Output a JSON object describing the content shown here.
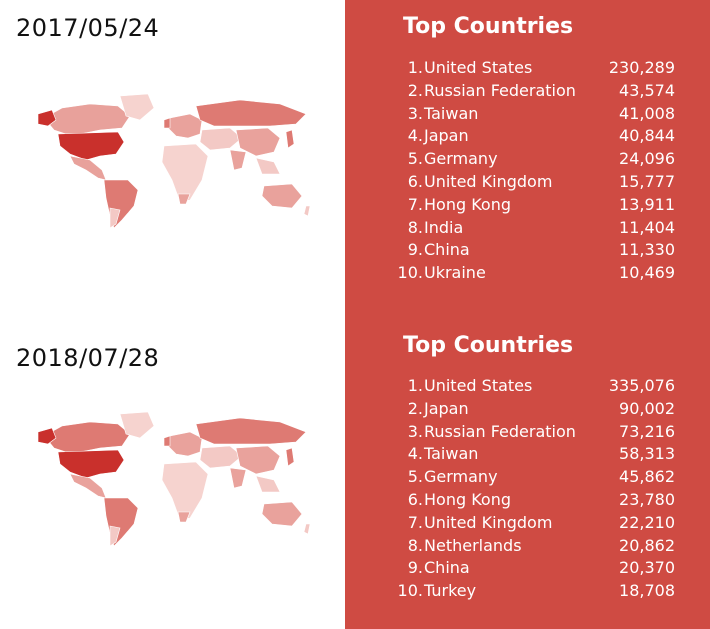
{
  "sections": [
    {
      "date": "2017/05/24",
      "panel_title": "Top Countries",
      "countries": [
        {
          "rank": "1.",
          "name": "United States",
          "value": "230,289"
        },
        {
          "rank": "2.",
          "name": "Russian Federation",
          "value": "43,574"
        },
        {
          "rank": "3.",
          "name": "Taiwan",
          "value": "41,008"
        },
        {
          "rank": "4.",
          "name": "Japan",
          "value": "40,844"
        },
        {
          "rank": "5.",
          "name": "Germany",
          "value": "24,096"
        },
        {
          "rank": "6.",
          "name": "United Kingdom",
          "value": "15,777"
        },
        {
          "rank": "7.",
          "name": "Hong Kong",
          "value": "13,911"
        },
        {
          "rank": "8.",
          "name": "India",
          "value": "11,404"
        },
        {
          "rank": "9.",
          "name": "China",
          "value": "11,330"
        },
        {
          "rank": "10.",
          "name": "Ukraine",
          "value": "10,469"
        }
      ]
    },
    {
      "date": "2018/07/28",
      "panel_title": "Top Countries",
      "countries": [
        {
          "rank": "1.",
          "name": "United States",
          "value": "335,076"
        },
        {
          "rank": "2.",
          "name": "Japan",
          "value": "90,002"
        },
        {
          "rank": "3.",
          "name": "Russian Federation",
          "value": "73,216"
        },
        {
          "rank": "4.",
          "name": "Taiwan",
          "value": "58,313"
        },
        {
          "rank": "5.",
          "name": "Germany",
          "value": "45,862"
        },
        {
          "rank": "6.",
          "name": "Hong Kong",
          "value": "23,780"
        },
        {
          "rank": "7.",
          "name": "United Kingdom",
          "value": "22,210"
        },
        {
          "rank": "8.",
          "name": "Netherlands",
          "value": "20,862"
        },
        {
          "rank": "9.",
          "name": "China",
          "value": "20,370"
        },
        {
          "rank": "10.",
          "name": "Turkey",
          "value": "18,708"
        }
      ]
    }
  ],
  "colors": {
    "panel": "#cf4b43",
    "max": "#c9302c",
    "high": "#de7a73",
    "mid": "#e9a29c",
    "low": "#f3c9c5",
    "none": "#f8dedb"
  }
}
